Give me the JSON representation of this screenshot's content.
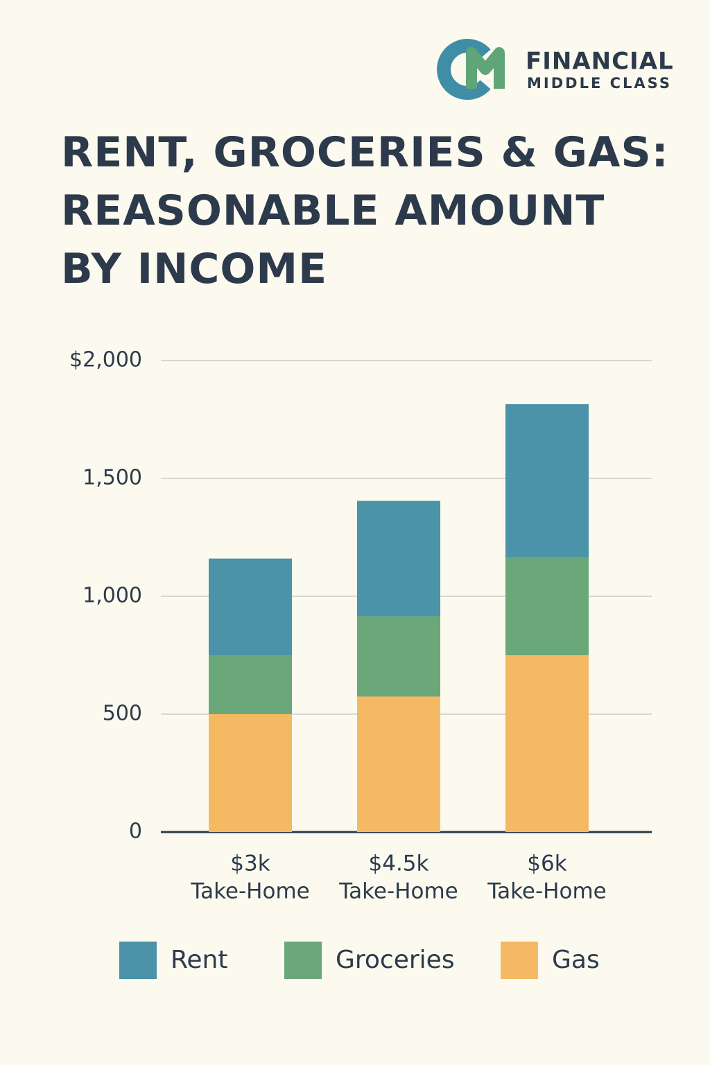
{
  "brand": {
    "name": "FINANCIAL",
    "tagline": "MIDDLE CLASS"
  },
  "chart_data": {
    "type": "stacked-bar",
    "title": "RENT, GROCERIES & GAS: REASONABLE AMOUNT BY INCOME",
    "categories": [
      [
        "$3k",
        "Take-Home"
      ],
      [
        "$4.5k",
        "Take-Home"
      ],
      [
        "$6k",
        "Take-Home"
      ]
    ],
    "series": [
      {
        "name": "Rent",
        "color": "#4a93a8",
        "values": [
          410,
          490,
          650
        ]
      },
      {
        "name": "Groceries",
        "color": "#6aa87a",
        "values": [
          250,
          340,
          415
        ]
      },
      {
        "name": "Gas",
        "color": "#f5b963",
        "values": [
          500,
          575,
          750
        ]
      }
    ],
    "stack_from_bottom": [
      "Gas",
      "Groceries",
      "Rent"
    ],
    "ylim": [
      0,
      2000
    ],
    "yticks": [
      0,
      500,
      {
        "value": 1000,
        "label": "1,000"
      },
      {
        "value": 1500,
        "label": "1,500"
      },
      {
        "value": 2000,
        "label": "$2,000"
      }
    ],
    "grid": true,
    "legend": "bottom"
  }
}
